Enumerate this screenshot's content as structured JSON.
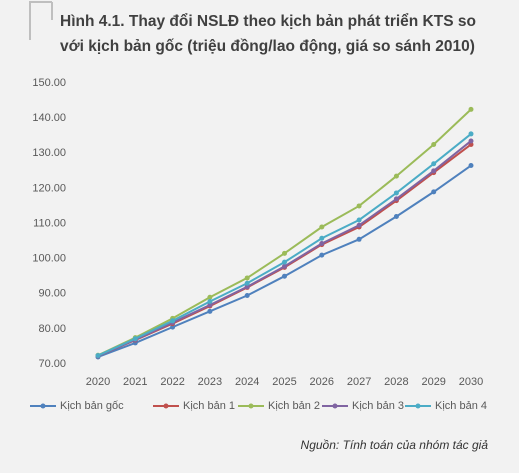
{
  "chart_data": {
    "type": "line",
    "title": [
      "Hình 4.1. Thay đổi NSLĐ theo kịch bản phát triển KTS so",
      "với kịch bản gốc (triệu đồng/lao động, giá so sánh 2010)"
    ],
    "categories": [
      "2020",
      "2021",
      "2022",
      "2023",
      "2024",
      "2025",
      "2026",
      "2027",
      "2028",
      "2029",
      "2030"
    ],
    "series": [
      {
        "name": "Kịch bản gốc",
        "color": "#4f81bd",
        "values": [
          72,
          76,
          80.5,
          85,
          89.5,
          95,
          101,
          105.5,
          112,
          119,
          126.5
        ]
      },
      {
        "name": "Kịch bản 1",
        "color": "#c0504d",
        "values": [
          72.3,
          76.8,
          81.5,
          86.5,
          91.8,
          97.5,
          104,
          109,
          116.5,
          124.5,
          132.5
        ]
      },
      {
        "name": "Kịch bản 2",
        "color": "#9bbb59",
        "values": [
          72.5,
          77.5,
          83,
          89,
          94.5,
          101.5,
          109,
          115,
          123.5,
          132.5,
          142.5
        ]
      },
      {
        "name": "Kịch bản 3",
        "color": "#8064a2",
        "values": [
          72.3,
          76.9,
          81.8,
          86.8,
          92,
          97.8,
          104.3,
          109.5,
          117,
          125,
          133.5
        ]
      },
      {
        "name": "Kịch bản 4",
        "color": "#4bacc6",
        "values": [
          72.4,
          77.2,
          82.3,
          87.8,
          93,
          99,
          105.8,
          111,
          118.7,
          127,
          135.5
        ]
      }
    ],
    "ylim": [
      70,
      150
    ],
    "yticks": [
      {
        "value": 70,
        "label": "70.00"
      },
      {
        "value": 80,
        "label": "80.00"
      },
      {
        "value": 90,
        "label": "90.00"
      },
      {
        "value": 100,
        "label": "100.00"
      },
      {
        "value": 110,
        "label": "110.00"
      },
      {
        "value": 120,
        "label": "120.00"
      },
      {
        "value": 130,
        "label": "130.00"
      },
      {
        "value": 140,
        "label": "140.00"
      },
      {
        "value": 150,
        "label": "150.00"
      }
    ],
    "grid": false,
    "legend": "bottom",
    "source": "Nguồn: Tính toán của nhóm tác giả"
  }
}
